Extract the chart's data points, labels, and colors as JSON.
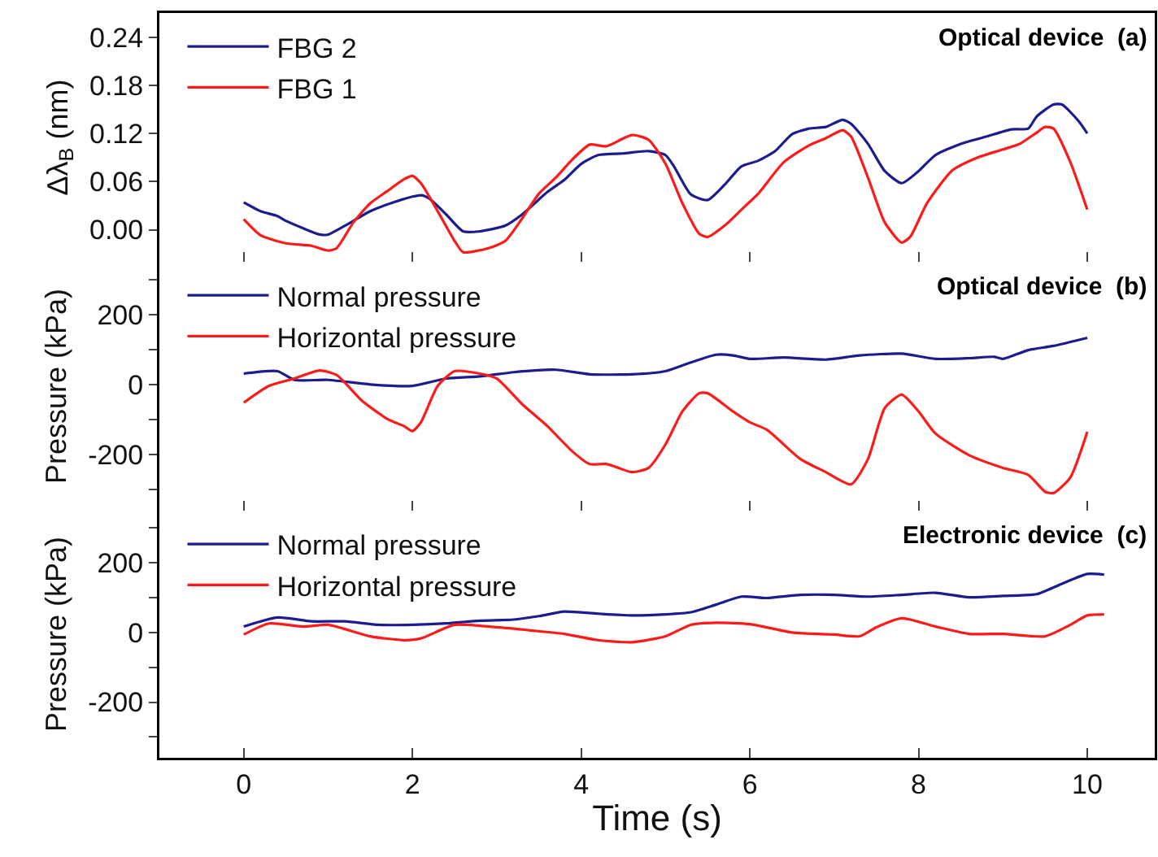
{
  "chart_data": [
    {
      "type": "line",
      "ylabel": "Δλ$_{B}$ (nm)",
      "annotations": [
        "Optical device  (a)"
      ],
      "xlim": [
        -1,
        10.8
      ],
      "xticks": [
        0,
        2,
        4,
        6,
        8,
        10
      ],
      "ylim": [
        -0.04,
        0.27
      ],
      "yticks": [
        {
          "value": 0,
          "label": "0.00"
        },
        0.06,
        0.12,
        0.18,
        0.24
      ],
      "tick_labels": "y",
      "legend": "top left",
      "grid": false,
      "line_style": "solid",
      "marker": "none",
      "series": [
        {
          "name": "FBG 2",
          "color": "#1c1c8f",
          "x": [
            0,
            0.2,
            0.4,
            0.5,
            0.7,
            0.9,
            1.0,
            1.2,
            1.5,
            1.8,
            2.1,
            2.2,
            2.4,
            2.6,
            2.8,
            3.1,
            3.3,
            3.6,
            3.8,
            4.0,
            4.2,
            4.5,
            4.8,
            5.0,
            5.1,
            5.3,
            5.5,
            5.7,
            5.9,
            6.1,
            6.3,
            6.5,
            6.7,
            6.9,
            7.1,
            7.2,
            7.4,
            7.6,
            7.8,
            8.0,
            8.2,
            8.5,
            8.8,
            9.1,
            9.3,
            9.4,
            9.6,
            9.7,
            9.9,
            10.0
          ],
          "values": [
            0.034,
            0.023,
            0.017,
            0.011,
            0.002,
            -0.006,
            -0.006,
            0.005,
            0.023,
            0.035,
            0.043,
            0.039,
            0.019,
            -0.002,
            -0.002,
            0.005,
            0.019,
            0.047,
            0.062,
            0.082,
            0.093,
            0.095,
            0.098,
            0.093,
            0.079,
            0.044,
            0.037,
            0.056,
            0.079,
            0.086,
            0.098,
            0.119,
            0.126,
            0.128,
            0.137,
            0.132,
            0.107,
            0.073,
            0.058,
            0.073,
            0.093,
            0.107,
            0.116,
            0.125,
            0.126,
            0.141,
            0.156,
            0.156,
            0.135,
            0.12
          ]
        },
        {
          "name": "FBG 1",
          "color": "#ff1a1a",
          "x": [
            0,
            0.2,
            0.5,
            0.8,
            1.0,
            1.1,
            1.3,
            1.5,
            1.7,
            1.9,
            2.0,
            2.1,
            2.3,
            2.5,
            2.6,
            2.9,
            3.1,
            3.3,
            3.5,
            3.7,
            3.9,
            4.1,
            4.3,
            4.6,
            4.8,
            5.0,
            5.2,
            5.4,
            5.5,
            5.7,
            5.9,
            6.1,
            6.4,
            6.7,
            6.9,
            7.1,
            7.2,
            7.4,
            7.6,
            7.8,
            7.9,
            8.1,
            8.4,
            8.7,
            9.0,
            9.2,
            9.4,
            9.5,
            9.6,
            9.8,
            10.0
          ],
          "values": [
            0.013,
            -0.007,
            -0.017,
            -0.02,
            -0.026,
            -0.023,
            0.009,
            0.033,
            0.048,
            0.063,
            0.067,
            0.058,
            0.023,
            -0.014,
            -0.028,
            -0.023,
            -0.014,
            0.014,
            0.045,
            0.065,
            0.088,
            0.106,
            0.104,
            0.118,
            0.112,
            0.082,
            0.033,
            -0.005,
            -0.009,
            0.005,
            0.025,
            0.045,
            0.084,
            0.105,
            0.114,
            0.124,
            0.116,
            0.065,
            0.009,
            -0.016,
            -0.009,
            0.033,
            0.074,
            0.09,
            0.1,
            0.107,
            0.121,
            0.128,
            0.126,
            0.084,
            0.025
          ]
        }
      ]
    },
    {
      "type": "line",
      "ylabel": "Pressure (kPa)",
      "annotations": [
        "Optical device  (b)"
      ],
      "xlim": [
        -1,
        10.8
      ],
      "xticks": [
        0,
        2,
        4,
        6,
        8,
        10
      ],
      "ylim": [
        -360,
        350
      ],
      "yticks": [
        {
          "value": -300,
          "label": null
        },
        -200,
        {
          "value": -100,
          "label": null
        },
        0,
        {
          "value": 100,
          "label": null
        },
        200,
        {
          "value": 300,
          "label": null
        }
      ],
      "tick_labels": "y",
      "legend": "top left",
      "grid": false,
      "line_style": "solid",
      "marker": "none",
      "series": [
        {
          "name": "Normal pressure",
          "color": "#1c1c8f",
          "x": [
            0,
            0.4,
            0.6,
            1.0,
            1.5,
            2.0,
            2.4,
            2.8,
            3.2,
            3.7,
            4.1,
            4.6,
            5.0,
            5.3,
            5.6,
            5.8,
            6.0,
            6.4,
            6.9,
            7.3,
            7.8,
            8.2,
            8.6,
            8.9,
            9.0,
            9.3,
            9.6,
            10.0
          ],
          "values": [
            31,
            38,
            13,
            13,
            0,
            -4,
            17,
            23,
            35,
            42,
            29,
            29,
            38,
            63,
            85,
            83,
            73,
            77,
            71,
            83,
            88,
            73,
            75,
            79,
            73,
            98,
            110,
            133
          ]
        },
        {
          "name": "Horizontal pressure",
          "color": "#ff1a1a",
          "x": [
            0,
            0.3,
            0.6,
            0.9,
            1.1,
            1.4,
            1.7,
            1.9,
            2.0,
            2.1,
            2.3,
            2.5,
            2.8,
            3.0,
            3.3,
            3.6,
            3.9,
            4.1,
            4.3,
            4.6,
            4.8,
            5.0,
            5.2,
            5.4,
            5.5,
            5.8,
            6.0,
            6.2,
            6.6,
            6.9,
            7.2,
            7.4,
            7.6,
            7.8,
            8.0,
            8.2,
            8.6,
            9.0,
            9.3,
            9.5,
            9.6,
            9.8,
            10.0
          ],
          "values": [
            -52,
            -4,
            17,
            40,
            27,
            -46,
            -98,
            -119,
            -133,
            -108,
            -4,
            38,
            31,
            17,
            -56,
            -119,
            -192,
            -227,
            -227,
            -250,
            -238,
            -171,
            -77,
            -25,
            -25,
            -77,
            -108,
            -129,
            -213,
            -250,
            -285,
            -213,
            -67,
            -29,
            -77,
            -140,
            -202,
            -238,
            -258,
            -306,
            -310,
            -265,
            -135
          ]
        }
      ]
    },
    {
      "type": "line",
      "xlabel": "Time (s)",
      "ylabel": "Pressure (kPa)",
      "annotations": [
        "Electronic device  (c)"
      ],
      "xlim": [
        -1,
        10.8
      ],
      "xticks": [
        0,
        2,
        4,
        6,
        8,
        10
      ],
      "ylim": [
        -360,
        350
      ],
      "yticks": [
        {
          "value": -300,
          "label": null
        },
        -200,
        {
          "value": -100,
          "label": null
        },
        0,
        {
          "value": 100,
          "label": null
        },
        200,
        {
          "value": 300,
          "label": null
        }
      ],
      "legend": "top left",
      "grid": false,
      "line_style": "solid",
      "marker": "none",
      "series": [
        {
          "name": "Normal pressure",
          "color": "#1c1c8f",
          "x": [
            0,
            0.4,
            0.8,
            1.2,
            1.6,
            2.0,
            2.4,
            2.8,
            3.2,
            3.5,
            3.8,
            4.2,
            4.6,
            5.0,
            5.3,
            5.6,
            5.9,
            6.2,
            6.6,
            7.0,
            7.4,
            7.8,
            8.2,
            8.6,
            9.0,
            9.4,
            9.7,
            10.0,
            10.2
          ],
          "values": [
            17,
            43,
            32,
            32,
            22,
            22,
            26,
            34,
            37,
            47,
            60,
            54,
            49,
            52,
            58,
            80,
            103,
            99,
            108,
            108,
            103,
            108,
            114,
            101,
            105,
            110,
            140,
            168,
            166
          ]
        },
        {
          "name": "Horizontal pressure",
          "color": "#ff1a1a",
          "x": [
            0,
            0.3,
            0.7,
            1.0,
            1.5,
            1.9,
            2.1,
            2.5,
            3.0,
            3.4,
            3.8,
            4.2,
            4.6,
            5.0,
            5.3,
            5.6,
            6.0,
            6.5,
            7.0,
            7.3,
            7.5,
            7.8,
            8.2,
            8.6,
            9.0,
            9.5,
            9.8,
            10.0,
            10.2
          ],
          "values": [
            -6,
            26,
            17,
            22,
            -11,
            -22,
            -17,
            22,
            15,
            6,
            -4,
            -22,
            -28,
            -11,
            22,
            28,
            24,
            0,
            -6,
            -11,
            15,
            41,
            17,
            -4,
            -4,
            -11,
            22,
            49,
            52
          ]
        }
      ]
    }
  ]
}
